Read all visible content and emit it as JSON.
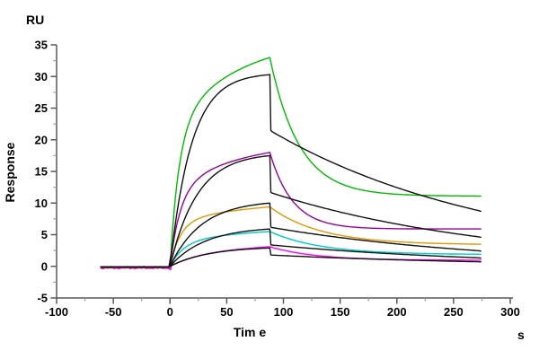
{
  "chart_data": {
    "type": "line",
    "title": "",
    "y_unit_label": "RU",
    "ylabel": "Response",
    "xlabel": "Tim e",
    "x_unit_label": "s",
    "xlim": [
      -100,
      300
    ],
    "ylim": [
      -5,
      35
    ],
    "x_ticks": [
      -100,
      -50,
      0,
      50,
      100,
      150,
      200,
      250,
      300
    ],
    "y_ticks": [
      -5,
      0,
      5,
      10,
      15,
      20,
      25,
      30,
      35
    ],
    "x_minor_step": 25,
    "y_minor_step": 2.5,
    "grid": false,
    "legend": "none",
    "description": "SPR sensorgram: five analyte concentrations (colored data traces) overlaid with black 1:1 kinetic fit curves; baseline -61 to 0 s, association 0-88 s, dissociation 88-274 s",
    "baseline_start_s": -61,
    "association_start_s": 0,
    "association_end_s": 88,
    "curve_end_s": 274,
    "series": [
      {
        "name": "data-conc-1-green",
        "role": "data",
        "color": "#00BB00",
        "baseline_ru": -0.1,
        "dip_ru": -0.5,
        "peak_ru": 33.0,
        "end_ru": 11.1,
        "assoc": {
          "w1": 0.6,
          "tau1": 8,
          "w2": 0.4,
          "tau2": 60
        },
        "dissoc": {
          "tau": 26,
          "plateau": 11.1
        }
      },
      {
        "name": "data-conc-2-purple",
        "role": "data",
        "color": "#990099",
        "baseline_ru": -0.2,
        "dip_ru": -0.4,
        "peak_ru": 18.0,
        "end_ru": 5.9,
        "assoc": {
          "w1": 0.6,
          "tau1": 9,
          "w2": 0.4,
          "tau2": 65
        },
        "dissoc": {
          "tau": 20,
          "plateau": 5.9
        }
      },
      {
        "name": "data-conc-3-orange",
        "role": "data",
        "color": "#E09800",
        "baseline_ru": -0.3,
        "dip_ru": -0.5,
        "peak_ru": 9.4,
        "end_ru": 3.5,
        "assoc": {
          "w1": 0.65,
          "tau1": 9,
          "w2": 0.35,
          "tau2": 90
        },
        "dissoc": {
          "tau": 45,
          "plateau": 3.4
        }
      },
      {
        "name": "data-conc-4-cyan",
        "role": "data",
        "color": "#00C8C8",
        "baseline_ru": -0.15,
        "dip_ru": -0.45,
        "peak_ru": 5.5,
        "end_ru": 1.9,
        "assoc": {
          "w1": 0.6,
          "tau1": 12,
          "w2": 0.4,
          "tau2": 90
        },
        "dissoc": {
          "tau": 45,
          "plateau": 1.85
        }
      },
      {
        "name": "data-conc-5-magenta",
        "role": "data",
        "color": "#FF00FF",
        "baseline_ru": -0.25,
        "dip_ru": -0.55,
        "peak_ru": 3.1,
        "end_ru": 1.0,
        "assoc": {
          "w1": 0.45,
          "tau1": 25,
          "w2": 0.55,
          "tau2": 110
        },
        "dissoc": {
          "tau": 40,
          "plateau": 0.95
        }
      },
      {
        "name": "fit-conc-1",
        "role": "fit",
        "color": "#111111",
        "baseline_ru": -0.1,
        "peak_ru": 30.3,
        "drop_ru": 21.5,
        "end_ru": 8.7,
        "assoc": {
          "tau": 19
        },
        "dissoc": {
          "tau": 200,
          "plateau": 0.4
        }
      },
      {
        "name": "fit-conc-2",
        "role": "fit",
        "color": "#111111",
        "baseline_ru": -0.1,
        "peak_ru": 17.5,
        "drop_ru": 11.7,
        "end_ru": 4.6,
        "assoc": {
          "tau": 24
        },
        "dissoc": {
          "tau": 200,
          "plateau": 0
        }
      },
      {
        "name": "fit-conc-3",
        "role": "fit",
        "color": "#111111",
        "baseline_ru": -0.1,
        "peak_ru": 10.0,
        "drop_ru": 6.2,
        "end_ru": 2.4,
        "assoc": {
          "tau": 28
        },
        "dissoc": {
          "tau": 200,
          "plateau": 0
        }
      },
      {
        "name": "fit-conc-4",
        "role": "fit",
        "color": "#111111",
        "baseline_ru": -0.1,
        "peak_ru": 5.9,
        "drop_ru": 3.4,
        "end_ru": 1.3,
        "assoc": {
          "tau": 31
        },
        "dissoc": {
          "tau": 200,
          "plateau": 0
        }
      },
      {
        "name": "fit-conc-5",
        "role": "fit",
        "color": "#111111",
        "baseline_ru": -0.1,
        "peak_ru": 2.9,
        "drop_ru": 1.8,
        "end_ru": 0.7,
        "assoc": {
          "tau": 34
        },
        "dissoc": {
          "tau": 200,
          "plateau": 0
        }
      }
    ]
  },
  "colors": {
    "background": "#ffffff",
    "axis": "#595959",
    "minor_tick": "#999999",
    "tick_label": "#000000"
  }
}
